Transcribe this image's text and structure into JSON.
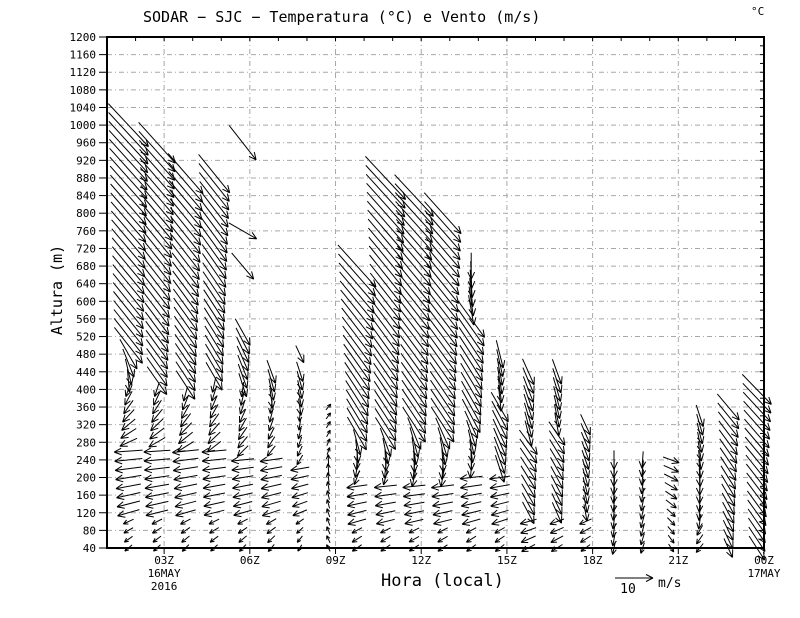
{
  "title": "SODAR − SJC − Temperatura (°C) e Vento (m/s)",
  "unit_label": "°C",
  "axes": {
    "y_label": "Altura (m)",
    "x_label": "Hora (local)",
    "y_ticks": [
      40,
      80,
      120,
      160,
      200,
      240,
      280,
      320,
      360,
      400,
      440,
      480,
      520,
      560,
      600,
      640,
      680,
      720,
      760,
      800,
      840,
      880,
      920,
      960,
      1000,
      1040,
      1080,
      1120,
      1160,
      1200
    ],
    "x_ticks": [
      {
        "t": 3,
        "label": "03Z"
      },
      {
        "t": 6,
        "label": "06Z"
      },
      {
        "t": 9,
        "label": "09Z"
      },
      {
        "t": 12,
        "label": "12Z"
      },
      {
        "t": 15,
        "label": "15Z"
      },
      {
        "t": 18,
        "label": "18Z"
      },
      {
        "t": 21,
        "label": "21Z"
      },
      {
        "t": 24,
        "label": "00Z"
      }
    ],
    "date_labels": [
      {
        "t": 3,
        "lines": [
          "16MAY",
          "2016"
        ]
      },
      {
        "t": 24,
        "lines": [
          "17MAY"
        ]
      }
    ]
  },
  "legend": {
    "value": "10",
    "unit": "m/s",
    "reference_speed_ms": 10
  },
  "chart_data": {
    "type": "vector-field",
    "description": "Time-height wind vectors from SODAR at SJC; arrow direction = wind vector (0°=toward right/east, 90°=up/north), speed in m/s, height in meters, t = local hour (Z).",
    "x_range_hours": [
      1,
      24
    ],
    "y_range_m": [
      40,
      1200
    ],
    "grid": {
      "horizontal_every_m": 40,
      "vertical_every_h": 3,
      "style": "gray dash-dot"
    },
    "reference_speed_ms": 10,
    "columns": [
      {
        "t": 1.75,
        "segments": [
          [
            40,
            100,
            220,
            205,
            2.5,
            3
          ],
          [
            120,
            260,
            196,
            184,
            6,
            7.5
          ],
          [
            280,
            400,
            205,
            250,
            5,
            4
          ],
          [
            420,
            480,
            275,
            300,
            6,
            9
          ],
          [
            500,
            1000,
            308,
            313,
            12,
            15.5
          ]
        ]
      },
      {
        "t": 2.75,
        "segments": [
          [
            40,
            100,
            222,
            207,
            2.5,
            3
          ],
          [
            120,
            260,
            194,
            184,
            6,
            7
          ],
          [
            280,
            400,
            210,
            252,
            5,
            4
          ],
          [
            420,
            960,
            305,
            312,
            9,
            14.5
          ]
        ]
      },
      {
        "t": 3.75,
        "segments": [
          [
            40,
            100,
            225,
            208,
            2.5,
            3
          ],
          [
            120,
            250,
            196,
            186,
            5.5,
            7
          ],
          [
            270,
            390,
            212,
            255,
            5,
            4
          ],
          [
            410,
            880,
            303,
            311,
            9,
            14
          ]
        ]
      },
      {
        "t": 4.75,
        "segments": [
          [
            40,
            100,
            222,
            206,
            2.5,
            3
          ],
          [
            120,
            250,
            194,
            185,
            5.5,
            6.5
          ],
          [
            270,
            410,
            218,
            258,
            4.5,
            4
          ],
          [
            430,
            880,
            300,
            309,
            8.5,
            13
          ]
        ]
      },
      {
        "t": 5.75,
        "segments": [
          [
            40,
            100,
            226,
            208,
            2.5,
            3
          ],
          [
            120,
            240,
            196,
            186,
            5,
            6
          ],
          [
            260,
            390,
            225,
            262,
            4,
            4
          ],
          [
            410,
            520,
            288,
            299,
            6.5,
            8
          ],
          [
            680,
            680,
            310,
            310,
            9,
            9
          ],
          [
            760,
            760,
            330,
            330,
            8.5,
            8.5
          ],
          [
            960,
            960,
            308,
            308,
            11.5,
            11.5
          ]
        ]
      },
      {
        "t": 6.75,
        "segments": [
          [
            40,
            100,
            230,
            210,
            2.5,
            3
          ],
          [
            120,
            240,
            198,
            188,
            5,
            6
          ],
          [
            260,
            360,
            232,
            262,
            3.5,
            3.5
          ],
          [
            380,
            440,
            278,
            290,
            5.5,
            6.5
          ]
        ]
      },
      {
        "t": 7.75,
        "segments": [
          [
            40,
            100,
            238,
            215,
            2,
            2.5
          ],
          [
            120,
            220,
            202,
            190,
            4,
            5
          ],
          [
            240,
            340,
            240,
            266,
            3,
            3
          ],
          [
            360,
            440,
            278,
            288,
            4.5,
            5.5
          ],
          [
            480,
            480,
            295,
            295,
            5,
            5
          ]
        ]
      },
      {
        "t": 8.75,
        "segments": [
          [
            40,
            240,
            118,
            92,
            2,
            2.8
          ],
          [
            260,
            360,
            70,
            50,
            2,
            2
          ]
        ]
      },
      {
        "t": 9.75,
        "segments": [
          [
            40,
            80,
            215,
            208,
            3,
            3
          ],
          [
            100,
            180,
            196,
            188,
            5,
            5.5
          ],
          [
            200,
            280,
            250,
            285,
            4,
            7
          ],
          [
            300,
            680,
            300,
            312,
            10,
            15
          ]
        ]
      },
      {
        "t": 10.75,
        "segments": [
          [
            40,
            80,
            214,
            206,
            3,
            3
          ],
          [
            100,
            180,
            194,
            186,
            5,
            6
          ],
          [
            200,
            280,
            255,
            290,
            4,
            8
          ],
          [
            300,
            880,
            302,
            313,
            10,
            15.5
          ]
        ]
      },
      {
        "t": 11.75,
        "segments": [
          [
            40,
            80,
            213,
            206,
            3,
            3
          ],
          [
            100,
            180,
            193,
            186,
            5,
            6
          ],
          [
            200,
            300,
            258,
            292,
            5,
            9
          ],
          [
            320,
            840,
            303,
            313,
            11,
            15
          ]
        ]
      },
      {
        "t": 12.75,
        "segments": [
          [
            40,
            80,
            214,
            207,
            3,
            3
          ],
          [
            100,
            180,
            194,
            187,
            5,
            6
          ],
          [
            200,
            300,
            260,
            294,
            5,
            9
          ],
          [
            320,
            800,
            303,
            312,
            11,
            14.5
          ]
        ]
      },
      {
        "t": 13.75,
        "segments": [
          [
            40,
            80,
            216,
            208,
            3,
            3
          ],
          [
            100,
            200,
            196,
            186,
            5,
            6
          ],
          [
            220,
            320,
            265,
            295,
            5,
            8
          ],
          [
            340,
            560,
            298,
            306,
            10,
            12
          ],
          [
            580,
            680,
            280,
            270,
            8,
            7
          ]
        ]
      },
      {
        "t": 14.75,
        "segments": [
          [
            40,
            80,
            218,
            210,
            3,
            3
          ],
          [
            100,
            200,
            198,
            188,
            4.5,
            5.5
          ],
          [
            220,
            360,
            288,
            300,
            7.5,
            9
          ],
          [
            380,
            480,
            276,
            284,
            7,
            7.5
          ]
        ]
      },
      {
        "t": 15.75,
        "segments": [
          [
            40,
            100,
            208,
            196,
            4,
            4.5
          ],
          [
            120,
            280,
            298,
            306,
            6.5,
            8
          ],
          [
            300,
            440,
            284,
            294,
            7,
            7.5
          ]
        ]
      },
      {
        "t": 16.75,
        "segments": [
          [
            40,
            100,
            212,
            200,
            3.5,
            4
          ],
          [
            120,
            300,
            294,
            304,
            6,
            7.5
          ],
          [
            320,
            440,
            280,
            290,
            6,
            7
          ]
        ]
      },
      {
        "t": 17.75,
        "segments": [
          [
            40,
            100,
            216,
            204,
            3,
            3.5
          ],
          [
            120,
            320,
            280,
            295,
            4.5,
            6
          ]
        ]
      },
      {
        "t": 18.75,
        "segments": [
          [
            40,
            240,
            258,
            270,
            3.5,
            5
          ]
        ]
      },
      {
        "t": 19.75,
        "segments": [
          [
            40,
            240,
            252,
            266,
            3,
            4.5
          ]
        ]
      },
      {
        "t": 20.75,
        "segments": [
          [
            40,
            120,
            302,
            318,
            2.5,
            3
          ],
          [
            140,
            240,
            322,
            340,
            3.5,
            4.5
          ]
        ]
      },
      {
        "t": 21.75,
        "segments": [
          [
            40,
            80,
            232,
            240,
            3,
            3
          ],
          [
            100,
            340,
            262,
            288,
            4,
            6
          ]
        ]
      },
      {
        "t": 22.75,
        "segments": [
          [
            40,
            360,
            294,
            310,
            5.5,
            9
          ]
        ]
      },
      {
        "t": 23.75,
        "segments": [
          [
            40,
            400,
            303,
            314,
            7.5,
            11
          ]
        ]
      }
    ]
  }
}
